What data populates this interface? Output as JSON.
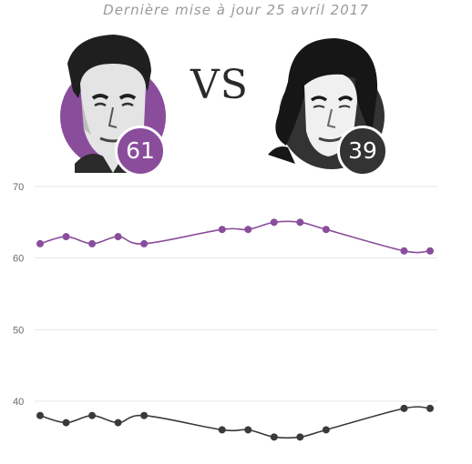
{
  "header": {
    "updated": "Dernière mise à jour 25 avril 2017"
  },
  "vs_label": "VS",
  "candidates": [
    {
      "id": "macron",
      "score": "61",
      "color": "#8a4d9c",
      "portrait_icon": "macron-portrait-icon"
    },
    {
      "id": "lepen",
      "score": "39",
      "color": "#333333",
      "portrait_icon": "le-pen-portrait-icon"
    }
  ],
  "chart_data": {
    "type": "line",
    "x": [
      1,
      2,
      3,
      4,
      5,
      6,
      7,
      8,
      9,
      10,
      11,
      12,
      13,
      14,
      15,
      16
    ],
    "ylim": [
      35,
      70
    ],
    "yticks": [
      40,
      50,
      60,
      70
    ],
    "grid": true,
    "series": [
      {
        "color": "#8a4d9c",
        "values": [
          62,
          63,
          62,
          63,
          62,
          null,
          null,
          64,
          64,
          65,
          65,
          64,
          null,
          null,
          61,
          61
        ]
      },
      {
        "color": "#3a3a3a",
        "values": [
          38,
          37,
          38,
          37,
          38,
          null,
          null,
          36,
          36,
          35,
          35,
          36,
          null,
          null,
          39,
          39
        ]
      }
    ]
  }
}
